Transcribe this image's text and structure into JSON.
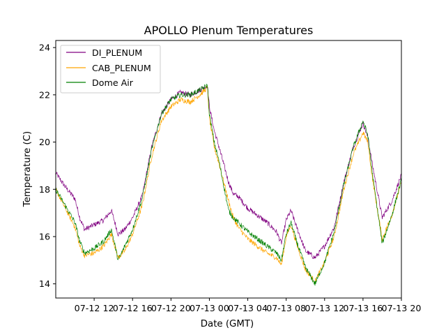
{
  "chart_data": {
    "type": "line",
    "title": "APOLLO Plenum Temperatures",
    "xlabel": "Date (GMT)",
    "ylabel": "Temperature (C)",
    "xlim": [
      0,
      36
    ],
    "ylim": [
      13.4,
      24.3
    ],
    "yticks": [
      14,
      16,
      18,
      20,
      22,
      24
    ],
    "xticks": [
      {
        "value": 4,
        "label": "07-12 12"
      },
      {
        "value": 8,
        "label": "07-12 16"
      },
      {
        "value": 12,
        "label": "07-12 20"
      },
      {
        "value": 16,
        "label": "07-13 00"
      },
      {
        "value": 20,
        "label": "07-13 04"
      },
      {
        "value": 24,
        "label": "07-13 08"
      },
      {
        "value": 28,
        "label": "07-13 12"
      },
      {
        "value": 32,
        "label": "07-13 16"
      },
      {
        "value": 36,
        "label": "07-13 20"
      }
    ],
    "x_unit": "hours since 07-12 08:00 GMT",
    "legend_position": "top-left",
    "grid": false,
    "series": [
      {
        "name": "DI_PLENUM",
        "color": "#800080",
        "x": [
          0,
          1,
          2,
          2.5,
          3,
          4,
          5,
          5.8,
          6.5,
          7.2,
          8,
          9,
          10,
          11,
          12,
          13,
          14,
          15,
          15.8,
          16,
          16.5,
          17,
          18,
          18.5,
          19,
          20,
          21,
          22,
          23,
          23.5,
          24,
          24.5,
          25,
          26,
          27,
          28,
          29,
          30,
          31,
          32,
          32.5,
          33,
          34,
          35,
          36
        ],
        "values": [
          18.7,
          18.1,
          17.6,
          16.8,
          16.3,
          16.5,
          16.7,
          17.1,
          16.1,
          16.3,
          16.8,
          17.7,
          19.8,
          21.2,
          21.8,
          22.1,
          22.0,
          22.2,
          22.4,
          21.5,
          20.5,
          19.8,
          18.3,
          17.8,
          17.7,
          17.2,
          16.9,
          16.6,
          16.2,
          15.7,
          16.7,
          17.1,
          16.5,
          15.4,
          15.1,
          15.6,
          16.4,
          18.3,
          19.8,
          20.8,
          20.2,
          19.0,
          16.8,
          17.5,
          18.6
        ]
      },
      {
        "name": "CAB_PLENUM",
        "color": "#ffa500",
        "x": [
          0,
          1,
          2,
          2.5,
          3,
          4,
          5,
          5.8,
          6.5,
          7.2,
          8,
          9,
          10,
          11,
          12,
          13,
          14,
          15,
          15.8,
          16,
          16.5,
          17,
          18,
          18.5,
          19,
          20,
          21,
          22,
          23,
          23.5,
          24,
          24.5,
          25,
          26,
          27,
          28,
          29,
          30,
          31,
          32,
          32.5,
          33,
          34,
          35,
          36
        ],
        "values": [
          18.0,
          17.2,
          16.4,
          15.6,
          15.2,
          15.3,
          15.6,
          16.1,
          15.1,
          15.4,
          16.1,
          17.3,
          19.4,
          20.9,
          21.5,
          21.8,
          21.7,
          22.0,
          22.3,
          21.0,
          19.8,
          19.1,
          17.5,
          16.8,
          16.4,
          15.9,
          15.6,
          15.3,
          15.1,
          14.8,
          16.0,
          16.5,
          15.8,
          14.6,
          14.1,
          14.9,
          16.0,
          18.0,
          19.5,
          20.4,
          20.0,
          18.4,
          15.9,
          16.9,
          18.3
        ]
      },
      {
        "name": "Dome Air",
        "color": "#008000",
        "x": [
          0,
          1,
          2,
          2.5,
          3,
          4,
          5,
          5.8,
          6.5,
          7.2,
          8,
          9,
          10,
          11,
          12,
          13,
          14,
          15,
          15.8,
          16,
          16.5,
          17,
          18,
          18.5,
          19,
          20,
          21,
          22,
          23,
          23.5,
          24,
          24.5,
          25,
          26,
          27,
          28,
          29,
          30,
          31,
          32,
          32.5,
          33,
          34,
          35,
          36
        ],
        "values": [
          18.0,
          17.3,
          16.6,
          15.8,
          15.3,
          15.5,
          15.8,
          16.3,
          15.0,
          15.6,
          16.3,
          17.6,
          19.7,
          21.2,
          21.8,
          22.0,
          22.0,
          22.2,
          22.4,
          21.2,
          20.0,
          19.2,
          17.1,
          16.8,
          16.6,
          16.2,
          15.9,
          15.6,
          15.3,
          15.0,
          16.1,
          16.6,
          15.9,
          14.7,
          14.0,
          14.9,
          16.2,
          18.2,
          19.8,
          20.9,
          20.3,
          18.6,
          15.7,
          16.9,
          18.4
        ]
      }
    ]
  }
}
